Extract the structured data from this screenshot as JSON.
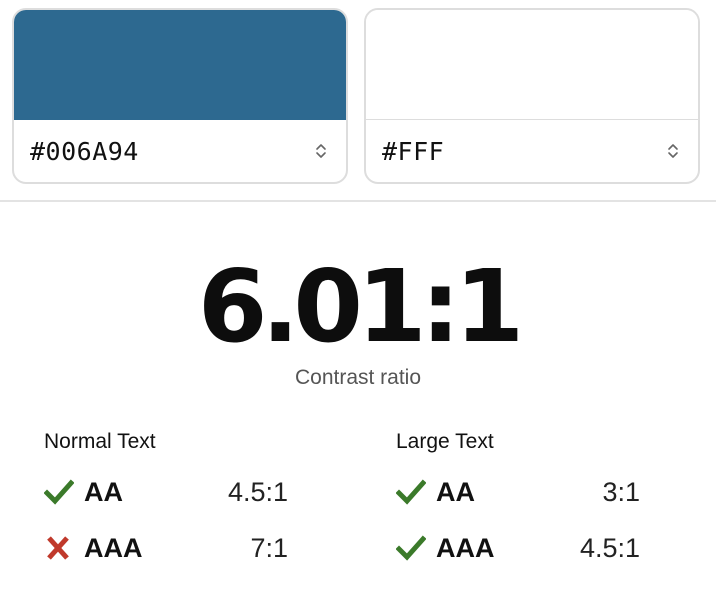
{
  "colors": {
    "foreground": "#2d6990",
    "background": "#ffffff",
    "pass": "#3b7a2a",
    "fail": "#c0392b"
  },
  "foreground": {
    "hex": "#006A94",
    "stepper_icon": "chevron-updown-icon"
  },
  "background": {
    "hex": "#FFF",
    "stepper_icon": "chevron-updown-icon"
  },
  "ratio": {
    "value": "6.01:1",
    "caption": "Contrast ratio"
  },
  "normal_text": {
    "title": "Normal Text",
    "rows": [
      {
        "level": "AA",
        "required": "4.5:1",
        "status": "pass",
        "icon": "check-icon"
      },
      {
        "level": "AAA",
        "required": "7:1",
        "status": "fail",
        "icon": "cross-icon"
      }
    ]
  },
  "large_text": {
    "title": "Large Text",
    "rows": [
      {
        "level": "AA",
        "required": "3:1",
        "status": "pass",
        "icon": "check-icon"
      },
      {
        "level": "AAA",
        "required": "4.5:1",
        "status": "pass",
        "icon": "check-icon"
      }
    ]
  }
}
